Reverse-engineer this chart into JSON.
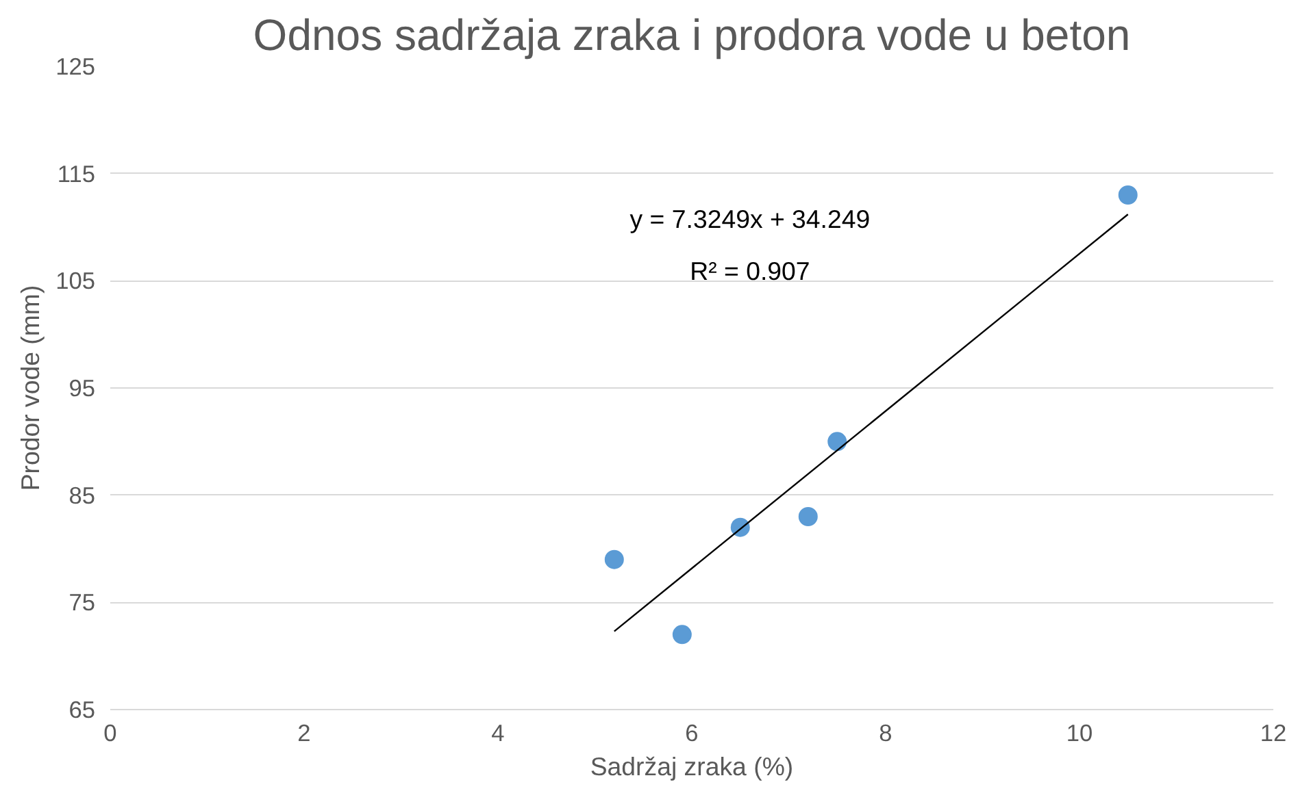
{
  "chart_data": {
    "type": "scatter",
    "title": "Odnos sadržaja zraka i prodora vode u beton",
    "xlabel": "Sadržaj zraka (%)",
    "ylabel": "Prodor vode (mm)",
    "series": [
      {
        "color": "#5b9bd5",
        "x": [
          5.2,
          5.9,
          6.5,
          7.2,
          7.5,
          10.5
        ],
        "values": [
          79,
          72,
          82,
          83,
          90,
          113
        ],
        "marker": "circle"
      },
      {
        "type": "line",
        "color": "#000000",
        "x": [
          5.2,
          10.5
        ],
        "values": [
          72.3,
          111.2
        ],
        "line_style": "solid"
      }
    ],
    "annotations": [
      "y = 7.3249x + 34.249",
      "R² = 0.907"
    ],
    "xlim": [
      0,
      12
    ],
    "xticks": [
      0,
      2,
      4,
      6,
      8,
      10,
      12
    ],
    "ylim": [
      65,
      125
    ],
    "yticks": [
      65,
      75,
      85,
      95,
      105,
      115,
      125
    ],
    "grid": "y"
  }
}
